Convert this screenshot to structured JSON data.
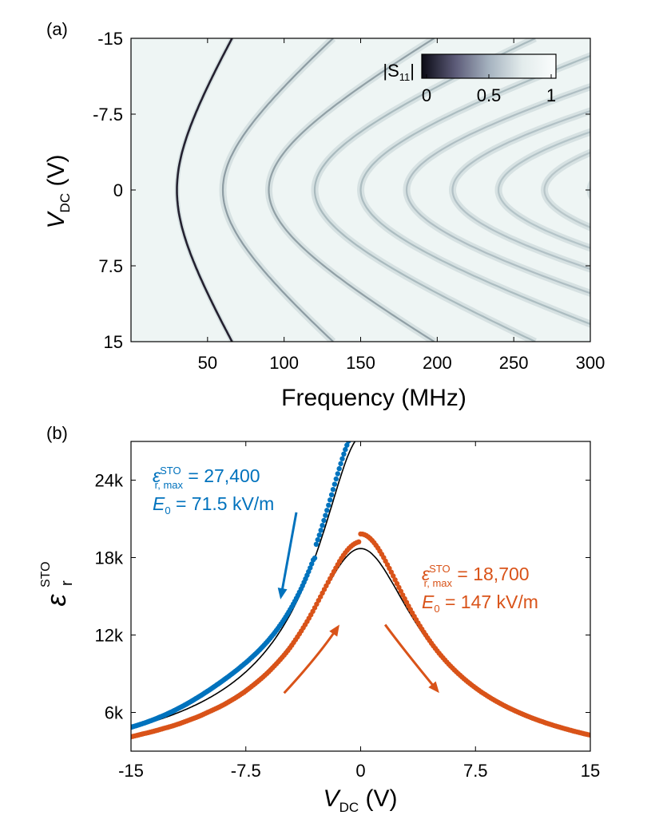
{
  "chart_data": [
    {
      "panel_label": "(a)",
      "type": "heatmap",
      "xlabel": "Frequency (MHz)",
      "ylabel_main": "V",
      "ylabel_sub": "DC",
      "ylabel_tail": " (V)",
      "xlim": [
        0,
        300
      ],
      "ylim": [
        -15,
        15
      ],
      "y_reversed": true,
      "xticks": [
        50,
        100,
        150,
        200,
        250,
        300
      ],
      "xtick_labels": [
        "50",
        "100",
        "150",
        "200",
        "250",
        "300"
      ],
      "yticks": [
        -15,
        -7.5,
        0,
        7.5,
        15
      ],
      "ytick_labels": [
        "-15",
        "-7.5",
        "0",
        "7.5",
        "15"
      ],
      "colorbar": {
        "label_main": "|S",
        "label_sub": "11",
        "label_tail": "|",
        "range": [
          0,
          1
        ],
        "ticks": [
          0,
          0.5,
          1
        ],
        "tick_labels": [
          "0",
          "0.5",
          "1"
        ],
        "colors": [
          "#0a0a14",
          "#5c5b78",
          "#a5b2bf",
          "#e3ecec",
          "#fbfdfd"
        ]
      },
      "background_color": "#eef5f4",
      "resonance_modes": [
        {
          "mode": 1,
          "f_at_0V_MHz": 30,
          "f_at_15V_MHz": 66
        },
        {
          "mode": 2,
          "f_at_0V_MHz": 60,
          "f_at_15V_MHz": 132
        },
        {
          "mode": 3,
          "f_at_0V_MHz": 90,
          "f_at_15V_MHz": 198
        },
        {
          "mode": 4,
          "f_at_0V_MHz": 120,
          "f_at_15V_MHz": 264
        },
        {
          "mode": 5,
          "f_at_0V_MHz": 150
        },
        {
          "mode": 6,
          "f_at_0V_MHz": 180
        },
        {
          "mode": 7,
          "f_at_0V_MHz": 210
        },
        {
          "mode": 8,
          "f_at_0V_MHz": 240
        },
        {
          "mode": 9,
          "f_at_0V_MHz": 270
        },
        {
          "mode": 10,
          "f_at_0V_MHz": 300
        }
      ]
    },
    {
      "panel_label": "(b)",
      "type": "scatter",
      "xlabel_main": "V",
      "xlabel_sub": "DC",
      "xlabel_tail": " (V)",
      "ylabel_main": "ε",
      "ylabel_sub": "r",
      "ylabel_sup": "STO",
      "xlim": [
        -15,
        15
      ],
      "ylim": [
        3000,
        27000
      ],
      "xticks": [
        -15,
        -7.5,
        0,
        7.5,
        15
      ],
      "xtick_labels": [
        "-15",
        "-7.5",
        "0",
        "7.5",
        "15"
      ],
      "yticks": [
        6000,
        12000,
        18000,
        24000
      ],
      "ytick_labels": [
        "6k",
        "12k",
        "18k",
        "24k"
      ],
      "series": [
        {
          "color": "#0072bd",
          "eps_max": 27400,
          "E0_kV_per_m": 71.5,
          "x_range": [
            -15,
            0
          ],
          "annotation": {
            "line1_main": "ε",
            "line1_sub": "r, max",
            "line1_sup": "STO",
            "line1_value": " = 27,400",
            "line2_main": "E",
            "line2_sub": "0",
            "line2_value": " = 71.5 kV/m"
          }
        },
        {
          "color": "#d95319",
          "eps_max": 18700,
          "E0_kV_per_m": 147,
          "x_range": [
            -15,
            15
          ],
          "annotation": {
            "line1_main": "ε",
            "line1_sub": "r, max",
            "line1_sup": "STO",
            "line1_value": " = 18,700",
            "line2_main": "E",
            "line2_sub": "0",
            "line2_value": " = 147 kV/m"
          }
        }
      ],
      "fit_line_color": "#000000",
      "arrows": [
        {
          "color": "#0072bd",
          "from": [
            -4.2,
            21500
          ],
          "to": [
            -5.2,
            15000
          ]
        },
        {
          "color": "#d95319",
          "from": [
            -5.0,
            7500
          ],
          "to": [
            -1.5,
            12600
          ]
        },
        {
          "color": "#d95319",
          "from": [
            1.6,
            12800
          ],
          "to": [
            5.0,
            7700
          ]
        }
      ]
    }
  ]
}
